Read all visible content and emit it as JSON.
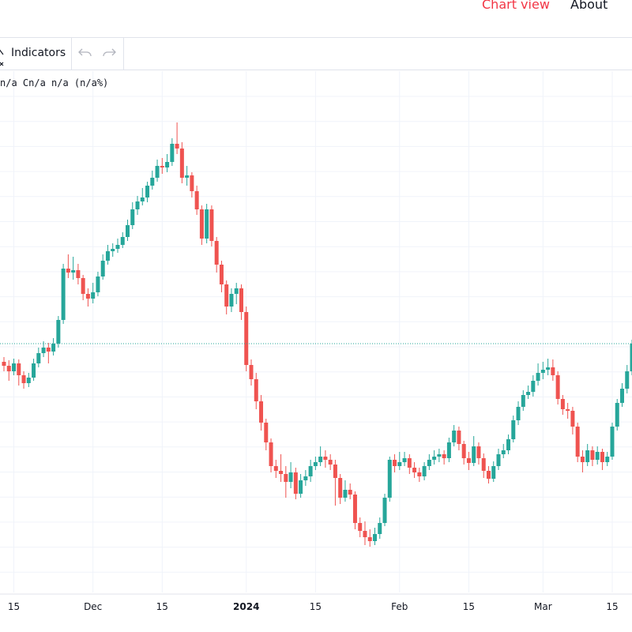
{
  "nav": {
    "chart_view": "Chart view",
    "about": "About"
  },
  "toolbar": {
    "indicators": "Indicators"
  },
  "legend": "n/a Cn/a n/a (n/a%)",
  "chart_data": {
    "type": "candlestick",
    "categories": [
      null,
      null,
      "15",
      null,
      null,
      null,
      null,
      null,
      null,
      null,
      null,
      null,
      null,
      null,
      null,
      null,
      null,
      null,
      "Dec",
      null,
      null,
      null,
      null,
      null,
      null,
      null,
      null,
      null,
      null,
      null,
      null,
      null,
      "15",
      null,
      null,
      null,
      null,
      null,
      null,
      null,
      null,
      null,
      null,
      null,
      null,
      null,
      null,
      null,
      null,
      "2024",
      null,
      null,
      null,
      null,
      null,
      null,
      null,
      null,
      null,
      null,
      null,
      null,
      null,
      "15",
      null,
      null,
      null,
      null,
      null,
      null,
      null,
      null,
      null,
      null,
      null,
      null,
      null,
      null,
      null,
      null,
      "Feb",
      null,
      null,
      null,
      null,
      null,
      null,
      null,
      null,
      null,
      null,
      null,
      null,
      null,
      "15",
      null,
      null,
      null,
      null,
      null,
      null,
      null,
      null,
      null,
      null,
      null,
      null,
      null,
      null,
      "Mar",
      null,
      null,
      null,
      null,
      null,
      null,
      null,
      null,
      null,
      null,
      null,
      null,
      null,
      "15",
      null,
      null,
      null,
      null
    ],
    "series": [
      {
        "open": [
          292,
          287,
          280,
          290,
          275,
          265,
          272,
          290,
          303,
          310,
          305,
          315,
          345,
          410,
          405,
          408,
          398,
          378,
          372,
          380,
          400,
          420,
          432,
          435,
          440,
          450,
          465,
          485,
          495,
          500,
          515,
          525,
          540,
          538,
          545,
          568,
          562,
          525,
          528,
          508,
          485,
          448,
          485,
          445,
          415,
          390,
          362,
          378,
          385,
          355,
          288,
          270,
          242,
          215,
          190,
          160,
          154,
          150,
          140,
          152,
          125,
          142,
          147,
          160,
          165,
          172,
          168,
          162,
          145,
          120,
          130,
          124,
          88,
          78,
          70,
          65,
          74,
          88,
          120,
          168,
          160,
          165,
          170,
          158,
          152,
          147,
          160,
          168,
          172,
          175,
          170,
          190,
          205,
          188,
          170,
          164,
          185,
          170,
          154,
          144,
          160,
          175,
          180,
          194,
          218,
          235,
          250,
          254,
          268,
          278,
          282,
          285,
          275,
          245,
          232,
          230,
          210,
          172,
          165,
          180,
          168,
          178,
          165,
          172,
          210,
          240,
          258,
          280
        ],
        "high": [
          298,
          294,
          296,
          295,
          280,
          278,
          296,
          310,
          318,
          316,
          322,
          350,
          416,
          428,
          425,
          416,
          402,
          385,
          392,
          406,
          428,
          440,
          442,
          448,
          456,
          472,
          494,
          502,
          512,
          520,
          534,
          548,
          550,
          555,
          575,
          595,
          570,
          540,
          532,
          515,
          490,
          492,
          490,
          450,
          420,
          395,
          385,
          392,
          390,
          362,
          295,
          278,
          250,
          220,
          195,
          168,
          175,
          160,
          165,
          158,
          150,
          155,
          168,
          172,
          185,
          180,
          175,
          168,
          150,
          142,
          138,
          128,
          95,
          90,
          80,
          82,
          95,
          125,
          172,
          175,
          178,
          178,
          175,
          165,
          158,
          165,
          175,
          180,
          182,
          180,
          196,
          212,
          210,
          192,
          178,
          198,
          190,
          176,
          160,
          166,
          182,
          188,
          200,
          224,
          242,
          256,
          262,
          275,
          290,
          292,
          296,
          295,
          280,
          250,
          240,
          235,
          215,
          180,
          188,
          185,
          185,
          182,
          178,
          215,
          245,
          265,
          288,
          320
        ],
        "low": [
          280,
          268,
          275,
          262,
          258,
          260,
          268,
          285,
          298,
          290,
          300,
          310,
          340,
          398,
          396,
          390,
          370,
          362,
          366,
          375,
          396,
          415,
          425,
          430,
          436,
          445,
          460,
          478,
          490,
          494,
          510,
          520,
          530,
          532,
          540,
          555,
          518,
          515,
          500,
          478,
          440,
          442,
          438,
          405,
          380,
          352,
          355,
          365,
          345,
          280,
          262,
          232,
          205,
          180,
          152,
          145,
          140,
          120,
          132,
          118,
          120,
          135,
          140,
          155,
          160,
          158,
          155,
          110,
          112,
          115,
          118,
          80,
          70,
          60,
          58,
          60,
          68,
          84,
          115,
          152,
          155,
          160,
          150,
          145,
          140,
          142,
          155,
          162,
          165,
          162,
          165,
          185,
          180,
          162,
          155,
          160,
          162,
          145,
          138,
          140,
          155,
          170,
          175,
          190,
          212,
          230,
          245,
          248,
          262,
          270,
          275,
          268,
          238,
          225,
          220,
          200,
          165,
          152,
          160,
          160,
          162,
          155,
          160,
          168,
          205,
          235,
          252,
          275
        ],
        "close": [
          287,
          280,
          290,
          275,
          265,
          272,
          290,
          303,
          310,
          305,
          315,
          345,
          410,
          405,
          408,
          398,
          378,
          372,
          380,
          400,
          420,
          432,
          435,
          440,
          450,
          465,
          485,
          495,
          500,
          515,
          525,
          540,
          538,
          545,
          568,
          562,
          525,
          528,
          508,
          485,
          448,
          485,
          445,
          415,
          390,
          362,
          378,
          385,
          355,
          288,
          270,
          242,
          215,
          190,
          160,
          154,
          150,
          140,
          152,
          125,
          142,
          147,
          160,
          165,
          172,
          168,
          162,
          145,
          120,
          130,
          124,
          88,
          78,
          70,
          65,
          74,
          88,
          120,
          168,
          160,
          165,
          170,
          158,
          152,
          147,
          160,
          168,
          172,
          175,
          170,
          190,
          205,
          188,
          170,
          164,
          185,
          170,
          154,
          144,
          160,
          175,
          180,
          194,
          218,
          235,
          250,
          254,
          268,
          278,
          282,
          285,
          275,
          245,
          232,
          230,
          210,
          172,
          165,
          180,
          168,
          178,
          165,
          172,
          210,
          240,
          258,
          280,
          315
        ]
      }
    ],
    "up_color": "#26a69a",
    "down_color": "#ef5350",
    "ylim": [
      0,
      660
    ]
  }
}
